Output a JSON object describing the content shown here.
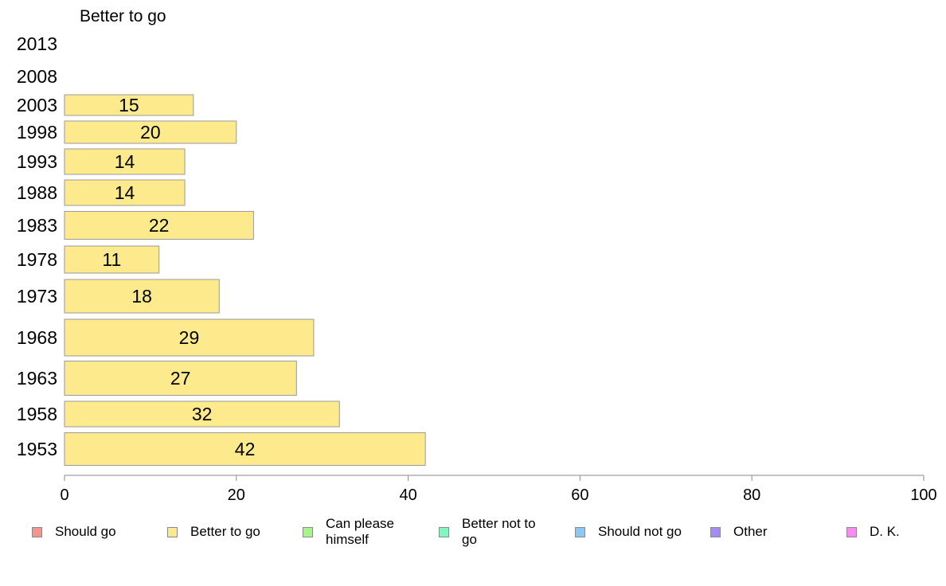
{
  "chart_data": {
    "type": "bar",
    "orientation": "horizontal",
    "title": "Better to go",
    "categories": [
      "2013",
      "2008",
      "2003",
      "1998",
      "1993",
      "1988",
      "1983",
      "1978",
      "1973",
      "1968",
      "1963",
      "1958",
      "1953"
    ],
    "series": [
      {
        "name": "Better to go",
        "color": "#fdea8d",
        "values": [
          null,
          null,
          15,
          20,
          14,
          14,
          22,
          11,
          18,
          29,
          27,
          32,
          42
        ]
      }
    ],
    "xlim": [
      0,
      100
    ],
    "xticks": [
      "0",
      "20",
      "40",
      "60",
      "80",
      "100"
    ],
    "grid": false,
    "legend_position": "bottom"
  },
  "legend": [
    {
      "label": "Should go",
      "color": "#f7948d"
    },
    {
      "label": "Better to go",
      "color": "#fdea8d"
    },
    {
      "label": "Can please himself",
      "color": "#a6f58a"
    },
    {
      "label": "Better not to go",
      "color": "#84f5c1"
    },
    {
      "label": "Should not go",
      "color": "#8ac8f7"
    },
    {
      "label": "Other",
      "color": "#a58cf5"
    },
    {
      "label": "D. K.",
      "color": "#f78cf0"
    }
  ]
}
